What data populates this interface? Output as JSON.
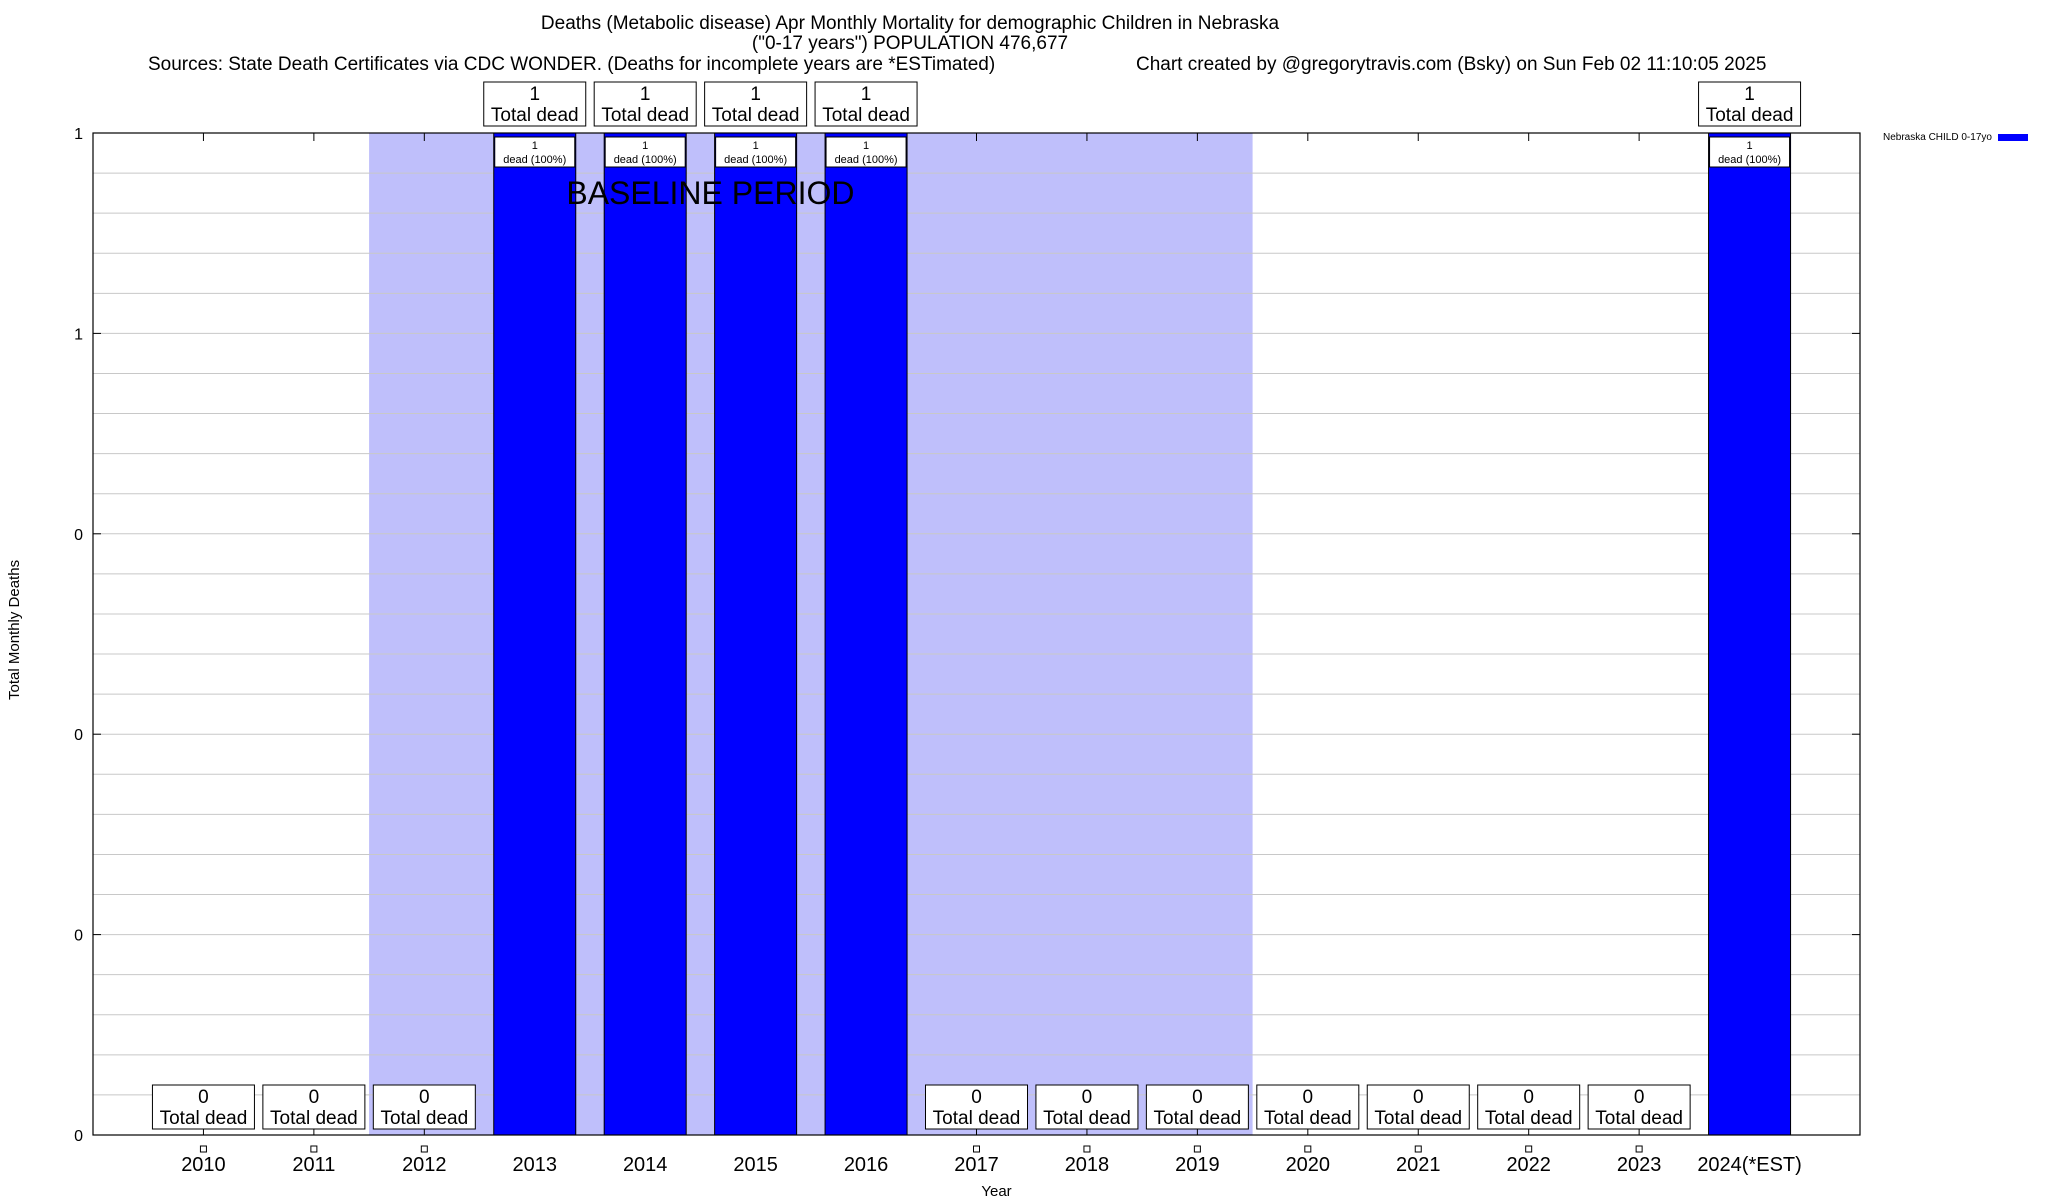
{
  "header": {
    "title_line1": "Deaths (Metabolic disease) Apr Monthly Mortality for demographic Children in Nebraska",
    "title_line2": "(\"0-17 years\") POPULATION 476,677",
    "sources": "Sources: State Death Certificates via CDC WONDER. (Deaths for incomplete years are *ESTimated)",
    "credit": "Chart created by @gregorytravis.com (Bsky) on Sun Feb 02 11:10:05 2025"
  },
  "legend": {
    "label": "Nebraska CHILD 0-17yo",
    "color": "#0000ff"
  },
  "chart_data": {
    "type": "bar",
    "xlabel": "Year",
    "ylabel": "Total Monthly Deaths",
    "categories": [
      "2010",
      "2011",
      "2012",
      "2013",
      "2014",
      "2015",
      "2016",
      "2017",
      "2018",
      "2019",
      "2020",
      "2021",
      "2022",
      "2023",
      "2024(*EST)"
    ],
    "series": [
      {
        "name": "Nebraska CHILD 0-17yo",
        "color": "#0000ff",
        "values": [
          0,
          0,
          0,
          1,
          1,
          1,
          1,
          0,
          0,
          0,
          0,
          0,
          0,
          0,
          1
        ]
      }
    ],
    "ylim": [
      0,
      1
    ],
    "yticks": [
      0,
      0.2,
      0.4,
      0.6,
      0.8,
      1
    ],
    "ytick_labels": [
      "0",
      "0",
      "0",
      "0",
      "1",
      "1"
    ],
    "grid": true,
    "total_label_suffix": "Total dead",
    "inbar_label_suffix": "dead (100%)",
    "baseline_period": {
      "label": "BASELINE PERIOD",
      "start": "2012",
      "end": "2019",
      "color": "#bfbffb"
    },
    "legend_position": "top-right outside"
  }
}
